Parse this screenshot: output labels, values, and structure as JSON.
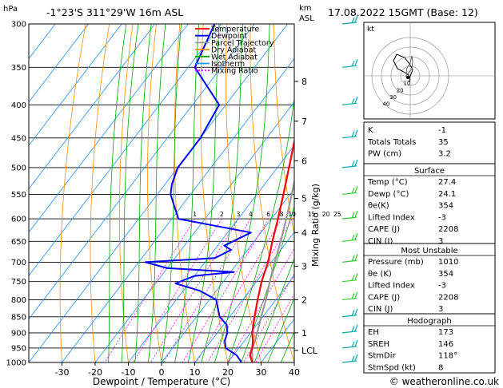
{
  "header": {
    "location": "-1°23'S 311°29'W 16m ASL",
    "datetime": "17.08.2022 15GMT (Base: 12)",
    "hpa_label": "hPa",
    "km_label_1": "km",
    "km_label_2": "ASL",
    "credit": "© weatheronline.co.uk"
  },
  "chart_data": {
    "type": "skew-t",
    "xlabel": "Dewpoint / Temperature (°C)",
    "ylabel_right": "Mixing Ratio (g/kg)",
    "x_ticks": [
      -30,
      -20,
      -10,
      0,
      10,
      20,
      30,
      40
    ],
    "pressure_levels": [
      300,
      350,
      400,
      450,
      500,
      550,
      600,
      650,
      700,
      750,
      800,
      850,
      900,
      950,
      1000
    ],
    "km_ticks": [
      {
        "label": "8",
        "p": 368
      },
      {
        "label": "7",
        "p": 424
      },
      {
        "label": "6",
        "p": 488
      },
      {
        "label": "5",
        "p": 558
      },
      {
        "label": "4",
        "p": 630
      },
      {
        "label": "3",
        "p": 710
      },
      {
        "label": "2",
        "p": 800
      },
      {
        "label": "1",
        "p": 900
      },
      {
        "label": "LCL",
        "p": 958
      }
    ],
    "mixing_ratio_labels": [
      "1",
      "2",
      "3",
      "4",
      "6",
      "8",
      "10",
      "15",
      "20",
      "25"
    ],
    "mixing_ratio_values": [
      1,
      2,
      3,
      4,
      6,
      8,
      10,
      15,
      20,
      25
    ],
    "legend": [
      {
        "name": "Temperature",
        "color": "#ff0000"
      },
      {
        "name": "Dewpoint",
        "color": "#0000ff"
      },
      {
        "name": "Parcel Trajectory",
        "color": "#999999"
      },
      {
        "name": "Dry Adiabat",
        "color": "#ff8c00"
      },
      {
        "name": "Wet Adiabat",
        "color": "#00aa00"
      },
      {
        "name": "Isotherm",
        "color": "#1e90ff"
      },
      {
        "name": "Mixing Ratio",
        "color": "#ff00ff"
      }
    ],
    "temperature": [
      {
        "p": 1000,
        "t": 27.4
      },
      {
        "p": 975,
        "t": 25
      },
      {
        "p": 950,
        "t": 24
      },
      {
        "p": 925,
        "t": 22.5
      },
      {
        "p": 900,
        "t": 20.5
      },
      {
        "p": 850,
        "t": 17.5
      },
      {
        "p": 800,
        "t": 14.5
      },
      {
        "p": 750,
        "t": 11.5
      },
      {
        "p": 700,
        "t": 9
      },
      {
        "p": 650,
        "t": 5.5
      },
      {
        "p": 600,
        "t": 2
      },
      {
        "p": 550,
        "t": -2
      },
      {
        "p": 500,
        "t": -6.5
      },
      {
        "p": 450,
        "t": -11.5
      },
      {
        "p": 400,
        "t": -18
      },
      {
        "p": 350,
        "t": -26
      },
      {
        "p": 300,
        "t": -33
      }
    ],
    "dewpoint": [
      {
        "p": 1000,
        "t": 24.1
      },
      {
        "p": 975,
        "t": 21
      },
      {
        "p": 950,
        "t": 16
      },
      {
        "p": 925,
        "t": 14
      },
      {
        "p": 900,
        "t": 13
      },
      {
        "p": 875,
        "t": 11
      },
      {
        "p": 850,
        "t": 7
      },
      {
        "p": 800,
        "t": 2
      },
      {
        "p": 775,
        "t": -5
      },
      {
        "p": 755,
        "t": -14
      },
      {
        "p": 735,
        "t": -10
      },
      {
        "p": 725,
        "t": 1
      },
      {
        "p": 715,
        "t": -20
      },
      {
        "p": 700,
        "t": -28
      },
      {
        "p": 690,
        "t": -8
      },
      {
        "p": 670,
        "t": -5
      },
      {
        "p": 660,
        "t": -8
      },
      {
        "p": 630,
        "t": -3
      },
      {
        "p": 600,
        "t": -28
      },
      {
        "p": 550,
        "t": -36
      },
      {
        "p": 530,
        "t": -38
      },
      {
        "p": 500,
        "t": -40
      },
      {
        "p": 450,
        "t": -40
      },
      {
        "p": 400,
        "t": -42
      },
      {
        "p": 350,
        "t": -58
      },
      {
        "p": 300,
        "t": -62
      }
    ],
    "parcel": [
      {
        "p": 1000,
        "t": 27.4
      },
      {
        "p": 958,
        "t": 24.5
      },
      {
        "p": 900,
        "t": 22
      },
      {
        "p": 850,
        "t": 19.5
      },
      {
        "p": 800,
        "t": 17
      },
      {
        "p": 750,
        "t": 14
      },
      {
        "p": 700,
        "t": 11
      },
      {
        "p": 650,
        "t": 8
      },
      {
        "p": 600,
        "t": 4.5
      },
      {
        "p": 550,
        "t": 0.5
      },
      {
        "p": 500,
        "t": -4
      },
      {
        "p": 450,
        "t": -9
      },
      {
        "p": 400,
        "t": -15
      },
      {
        "p": 350,
        "t": -22
      },
      {
        "p": 300,
        "t": -30
      }
    ]
  },
  "hodograph": {
    "label": "kt",
    "rings": [
      "10",
      "20",
      "30",
      "40"
    ]
  },
  "indices": [
    {
      "label": "K",
      "value": "-1"
    },
    {
      "label": "Totals Totals",
      "value": "35"
    },
    {
      "label": "PW (cm)",
      "value": "3.2"
    }
  ],
  "surface": {
    "title": "Surface",
    "rows": [
      {
        "label": "Temp (°C)",
        "value": "27.4"
      },
      {
        "label": "Dewp (°C)",
        "value": "24.1"
      },
      {
        "label": "θe(K)",
        "value": "354"
      },
      {
        "label": "Lifted Index",
        "value": "-3"
      },
      {
        "label": "CAPE (J)",
        "value": "2208"
      },
      {
        "label": "CIN (J)",
        "value": "3"
      }
    ]
  },
  "most_unstable": {
    "title": "Most Unstable",
    "rows": [
      {
        "label": "Pressure (mb)",
        "value": "1010"
      },
      {
        "label": "θe (K)",
        "value": "354"
      },
      {
        "label": "Lifted Index",
        "value": "-3"
      },
      {
        "label": "CAPE (J)",
        "value": "2208"
      },
      {
        "label": "CIN (J)",
        "value": "3"
      }
    ]
  },
  "hodograph_table": {
    "title": "Hodograph",
    "rows": [
      {
        "label": "EH",
        "value": "173"
      },
      {
        "label": "SREH",
        "value": "146"
      },
      {
        "label": "StmDir",
        "value": "118°"
      },
      {
        "label": "StmSpd (kt)",
        "value": "8"
      }
    ]
  }
}
